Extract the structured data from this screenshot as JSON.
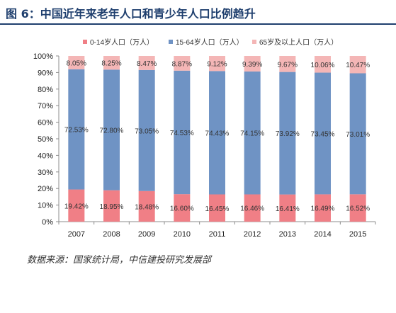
{
  "header": {
    "title": "图 6：中国近年来老年人口和青少年人口比例趋升"
  },
  "footer": {
    "source": "数据来源：国家统计局，中信建投研究发展部"
  },
  "chart_data": {
    "type": "bar",
    "stacked": true,
    "percent": true,
    "categories": [
      "2007",
      "2008",
      "2009",
      "2010",
      "2011",
      "2012",
      "2013",
      "2014",
      "2015"
    ],
    "series": [
      {
        "name": "0-14岁人口（万人）",
        "color": "#f07f86",
        "values": [
          19.42,
          18.95,
          18.48,
          16.6,
          16.45,
          16.46,
          16.41,
          16.49,
          16.52
        ],
        "labels": [
          "19.42%",
          "18.95%",
          "18.48%",
          "16.60%",
          "16.45%",
          "16.46%",
          "16.41%",
          "16.49%",
          "16.52%"
        ]
      },
      {
        "name": "15-64岁人口（万人）",
        "color": "#6f93c4",
        "values": [
          72.53,
          72.8,
          73.05,
          74.53,
          74.43,
          74.15,
          73.92,
          73.45,
          73.01
        ],
        "labels": [
          "72.53%",
          "72.80%",
          "73.05%",
          "74.53%",
          "74.43%",
          "74.15%",
          "73.92%",
          "73.45%",
          "73.01%"
        ]
      },
      {
        "name": "65岁及以上人口（万人）",
        "color": "#f4b6b6",
        "values": [
          8.05,
          8.25,
          8.47,
          8.87,
          9.12,
          9.39,
          9.67,
          10.06,
          10.47
        ],
        "labels": [
          "8.05%",
          "8.25%",
          "8.47%",
          "8.87%",
          "9.12%",
          "9.39%",
          "9.67%",
          "10.06%",
          "10.47%"
        ]
      }
    ],
    "yticks": [
      "0%",
      "10%",
      "20%",
      "30%",
      "40%",
      "50%",
      "60%",
      "70%",
      "80%",
      "90%",
      "100%"
    ],
    "ylim": [
      0,
      100
    ],
    "legend": "top",
    "grid": false
  }
}
